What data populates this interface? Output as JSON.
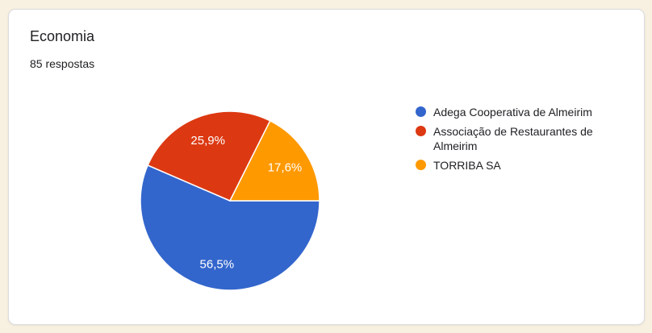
{
  "page": {
    "background_color": "#F8F0E1"
  },
  "card": {
    "title": "Economia",
    "responses": "85 respostas"
  },
  "chart_data": {
    "type": "pie",
    "title": "Economia",
    "subtitle": "85 respostas",
    "legend_position": "right",
    "start_angle_deg": 0,
    "direction": "clockwise",
    "label_color": "#FFFFFF",
    "separator_color": "#FFFFFF",
    "slices": [
      {
        "label": "Adega Cooperativa de Almeirim",
        "value": 56.5,
        "display_label": "56,5%",
        "color": "#3366CC"
      },
      {
        "label": "Associação de Restaurantes de Almeirim",
        "value": 25.9,
        "display_label": "25,9%",
        "color": "#DC3912"
      },
      {
        "label": "TORRIBA SA",
        "value": 17.6,
        "display_label": "17,6%",
        "color": "#FF9900"
      }
    ]
  }
}
